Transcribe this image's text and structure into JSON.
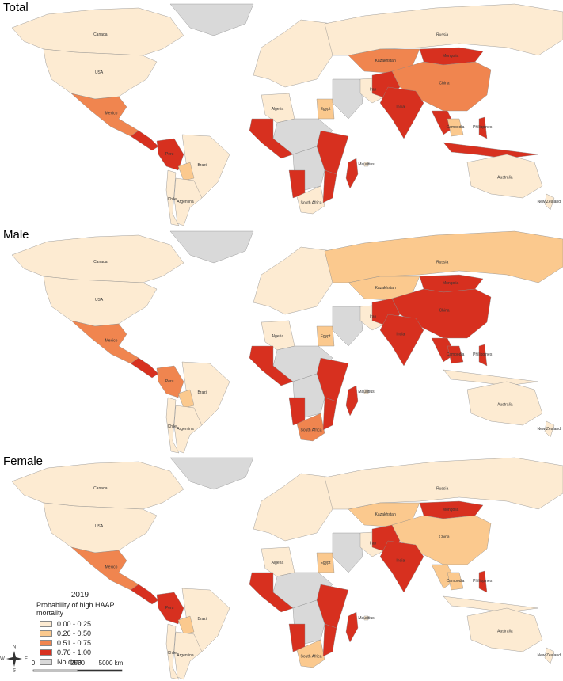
{
  "legend": {
    "title": "2019",
    "subtitle": "Probability of high HAAP mortality",
    "classes": [
      {
        "label": "0.00 - 0.25",
        "color": "#fdebd2"
      },
      {
        "label": "0.26 - 0.50",
        "color": "#fbc98e"
      },
      {
        "label": "0.51 - 0.75",
        "color": "#f0854f"
      },
      {
        "label": "0.76 - 1.00",
        "color": "#d7301f"
      },
      {
        "label": "No data",
        "color": "#d9d9d9"
      }
    ]
  },
  "compass": [
    "N",
    "E",
    "S",
    "W"
  ],
  "scale_bar": [
    "0",
    "2500",
    "5000 km"
  ],
  "panels": [
    {
      "title": "Total",
      "regions": [
        {
          "text": null,
          "class": 4
        },
        {
          "text": "Canada",
          "class": 0
        },
        {
          "text": "USA",
          "class": 0
        },
        {
          "text": "Mexico",
          "class": 2
        },
        {
          "text": null,
          "class": 3
        },
        {
          "text": "Brazil",
          "class": 0
        },
        {
          "text": "Peru",
          "class": 3
        },
        {
          "text": null,
          "class": 1
        },
        {
          "text": "Chile",
          "class": 0
        },
        {
          "text": "Argentina",
          "class": 0
        },
        {
          "text": null,
          "class": 0
        },
        {
          "text": "Algeria",
          "class": 0
        },
        {
          "text": "Egypt",
          "class": 1
        },
        {
          "text": null,
          "class": 4
        },
        {
          "text": null,
          "class": 3
        },
        {
          "text": null,
          "class": 3
        },
        {
          "text": null,
          "class": 4
        },
        {
          "text": null,
          "class": 3
        },
        {
          "text": "South Africa",
          "class": 0
        },
        {
          "text": null,
          "class": 3
        },
        {
          "text": null,
          "class": 3
        },
        {
          "text": null,
          "class": 4
        },
        {
          "text": "Iran",
          "class": 0
        },
        {
          "text": "Russia",
          "class": 0
        },
        {
          "text": "Kazakhstan",
          "class": 2
        },
        {
          "text": "Mongolia",
          "class": 3
        },
        {
          "text": "China",
          "class": 2
        },
        {
          "text": null,
          "class": 3
        },
        {
          "text": "India",
          "class": 3
        },
        {
          "text": null,
          "class": 3
        },
        {
          "text": "Cambodia",
          "class": 1
        },
        {
          "text": "Philippines",
          "class": 3
        },
        {
          "text": null,
          "class": 3
        },
        {
          "text": "Australia",
          "class": 0
        },
        {
          "text": "Mauritius",
          "class": 0
        },
        {
          "text": "New Zealand",
          "class": 0
        }
      ]
    },
    {
      "title": "Male",
      "regions": [
        {
          "text": null,
          "class": 4
        },
        {
          "text": "Canada",
          "class": 0
        },
        {
          "text": "USA",
          "class": 0
        },
        {
          "text": "Mexico",
          "class": 2
        },
        {
          "text": null,
          "class": 3
        },
        {
          "text": "Brazil",
          "class": 0
        },
        {
          "text": "Peru",
          "class": 2
        },
        {
          "text": null,
          "class": 1
        },
        {
          "text": "Chile",
          "class": 0
        },
        {
          "text": "Argentina",
          "class": 0
        },
        {
          "text": null,
          "class": 0
        },
        {
          "text": "Algeria",
          "class": 0
        },
        {
          "text": "Egypt",
          "class": 1
        },
        {
          "text": null,
          "class": 4
        },
        {
          "text": null,
          "class": 3
        },
        {
          "text": null,
          "class": 3
        },
        {
          "text": null,
          "class": 4
        },
        {
          "text": null,
          "class": 3
        },
        {
          "text": "South Africa",
          "class": 2
        },
        {
          "text": null,
          "class": 3
        },
        {
          "text": null,
          "class": 3
        },
        {
          "text": null,
          "class": 4
        },
        {
          "text": "Iran",
          "class": 0
        },
        {
          "text": "Russia",
          "class": 1
        },
        {
          "text": "Kazakhstan",
          "class": 1
        },
        {
          "text": "Mongolia",
          "class": 3
        },
        {
          "text": "China",
          "class": 3
        },
        {
          "text": null,
          "class": 3
        },
        {
          "text": "India",
          "class": 3
        },
        {
          "text": null,
          "class": 3
        },
        {
          "text": "Cambodia",
          "class": 3
        },
        {
          "text": "Philippines",
          "class": 3
        },
        {
          "text": null,
          "class": 0
        },
        {
          "text": "Australia",
          "class": 0
        },
        {
          "text": "Mauritius",
          "class": 0
        },
        {
          "text": "New Zealand",
          "class": 0
        }
      ]
    },
    {
      "title": "Female",
      "regions": [
        {
          "text": null,
          "class": 4
        },
        {
          "text": "Canada",
          "class": 0
        },
        {
          "text": "USA",
          "class": 0
        },
        {
          "text": "Mexico",
          "class": 2
        },
        {
          "text": null,
          "class": 3
        },
        {
          "text": "Brazil",
          "class": 0
        },
        {
          "text": "Peru",
          "class": 3
        },
        {
          "text": null,
          "class": 1
        },
        {
          "text": "Chile",
          "class": 0
        },
        {
          "text": "Argentina",
          "class": 0
        },
        {
          "text": null,
          "class": 0
        },
        {
          "text": "Algeria",
          "class": 0
        },
        {
          "text": "Egypt",
          "class": 1
        },
        {
          "text": null,
          "class": 4
        },
        {
          "text": null,
          "class": 3
        },
        {
          "text": null,
          "class": 3
        },
        {
          "text": null,
          "class": 4
        },
        {
          "text": null,
          "class": 3
        },
        {
          "text": "South Africa",
          "class": 1
        },
        {
          "text": null,
          "class": 3
        },
        {
          "text": null,
          "class": 3
        },
        {
          "text": null,
          "class": 4
        },
        {
          "text": "Iran",
          "class": 0
        },
        {
          "text": "Russia",
          "class": 0
        },
        {
          "text": "Kazakhstan",
          "class": 1
        },
        {
          "text": "Mongolia",
          "class": 3
        },
        {
          "text": "China",
          "class": 1
        },
        {
          "text": null,
          "class": 3
        },
        {
          "text": "India",
          "class": 3
        },
        {
          "text": null,
          "class": 1
        },
        {
          "text": "Cambodia",
          "class": 1
        },
        {
          "text": "Philippines",
          "class": 3
        },
        {
          "text": null,
          "class": 0
        },
        {
          "text": "Australia",
          "class": 0
        },
        {
          "text": "Mauritius",
          "class": 0
        },
        {
          "text": "New Zealand",
          "class": 0
        }
      ]
    }
  ]
}
